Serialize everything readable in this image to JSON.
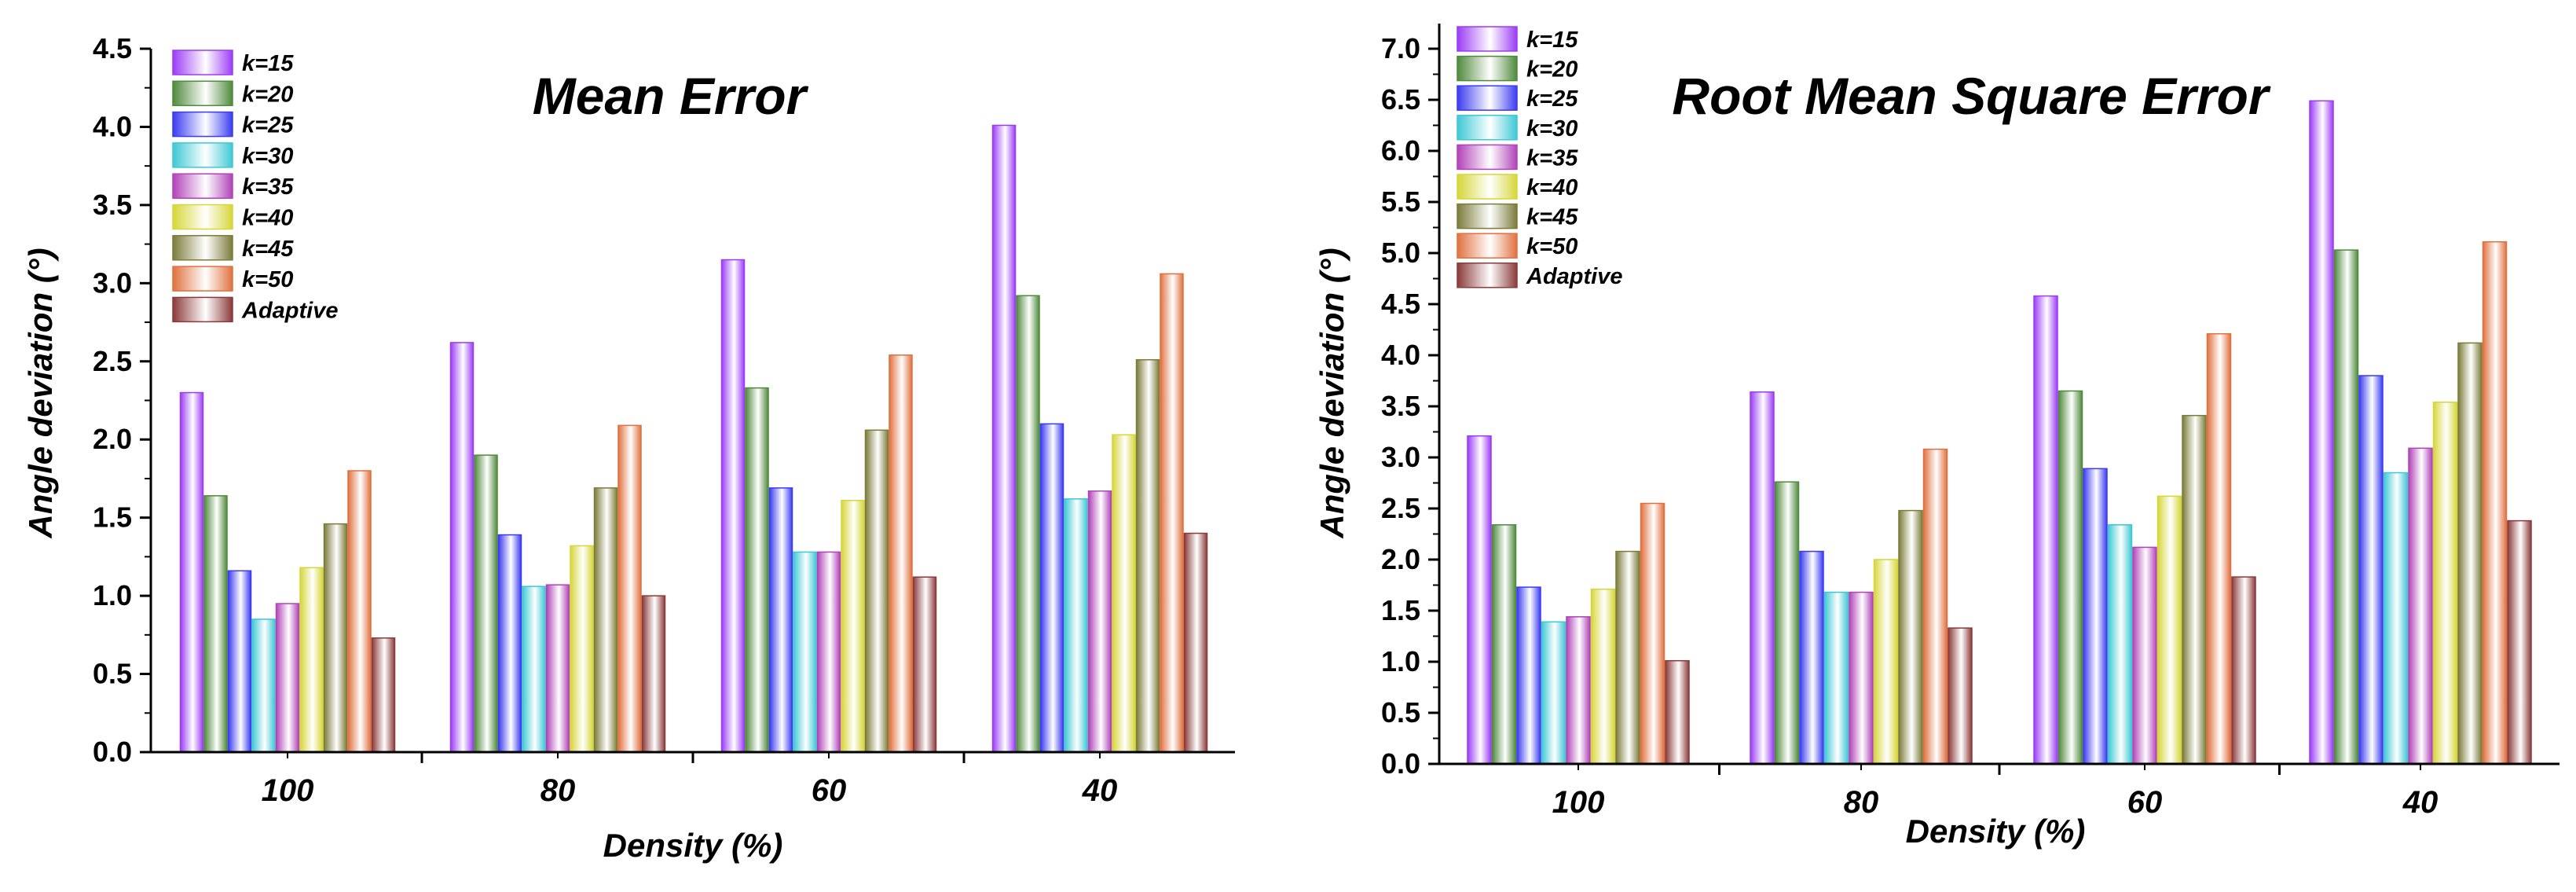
{
  "chart_data": [
    {
      "type": "bar",
      "title": "Mean Error",
      "xlabel": "Density (%)",
      "ylabel": "Angle deviation (°)",
      "categories": [
        "100",
        "80",
        "60",
        "40"
      ],
      "ylim": [
        0,
        4.5
      ],
      "yticks": [
        "0.0",
        "0.5",
        "1.0",
        "1.5",
        "2.0",
        "2.5",
        "3.0",
        "3.5",
        "4.0",
        "4.5"
      ],
      "legend_position": "top-left",
      "series": [
        {
          "name": "k=15",
          "color": "#9b3cf5",
          "values": [
            2.3,
            2.62,
            3.15,
            4.01
          ]
        },
        {
          "name": "k=20",
          "color": "#4f8a3c",
          "values": [
            1.64,
            1.9,
            2.33,
            2.92
          ]
        },
        {
          "name": "k=25",
          "color": "#3b3bf0",
          "values": [
            1.16,
            1.39,
            1.69,
            2.1
          ]
        },
        {
          "name": "k=30",
          "color": "#3ec8d4",
          "values": [
            0.85,
            1.06,
            1.28,
            1.62
          ]
        },
        {
          "name": "k=35",
          "color": "#b043b8",
          "values": [
            0.95,
            1.07,
            1.28,
            1.67
          ]
        },
        {
          "name": "k=40",
          "color": "#d6d63a",
          "values": [
            1.18,
            1.32,
            1.61,
            2.03
          ]
        },
        {
          "name": "k=45",
          "color": "#7b7b3a",
          "values": [
            1.46,
            1.69,
            2.06,
            2.51
          ]
        },
        {
          "name": "k=50",
          "color": "#e0713f",
          "values": [
            1.8,
            2.09,
            2.54,
            3.06
          ]
        },
        {
          "name": "Adaptive",
          "color": "#8b3a3a",
          "values": [
            0.73,
            1.0,
            1.12,
            1.4
          ]
        }
      ]
    },
    {
      "type": "bar",
      "title": "Root Mean Square Error",
      "xlabel": "Density (%)",
      "ylabel": "Angle deviation (°)",
      "categories": [
        "100",
        "80",
        "60",
        "40"
      ],
      "ylim": [
        0,
        7.0
      ],
      "yticks": [
        "0.0",
        "0.5",
        "1.0",
        "1.5",
        "2.0",
        "2.5",
        "3.0",
        "3.5",
        "4.0",
        "4.5",
        "5.0",
        "5.5",
        "6.0",
        "6.5",
        "7.0"
      ],
      "legend_position": "top-left",
      "series": [
        {
          "name": "k=15",
          "color": "#9b3cf5",
          "values": [
            3.21,
            3.64,
            4.58,
            6.49
          ]
        },
        {
          "name": "k=20",
          "color": "#4f8a3c",
          "values": [
            2.34,
            2.76,
            3.65,
            5.03
          ]
        },
        {
          "name": "k=25",
          "color": "#3b3bf0",
          "values": [
            1.73,
            2.08,
            2.89,
            3.8
          ]
        },
        {
          "name": "k=30",
          "color": "#3ec8d4",
          "values": [
            1.39,
            1.68,
            2.34,
            2.85
          ]
        },
        {
          "name": "k=35",
          "color": "#b043b8",
          "values": [
            1.44,
            1.68,
            2.12,
            3.09
          ]
        },
        {
          "name": "k=40",
          "color": "#d6d63a",
          "values": [
            1.71,
            2.0,
            2.62,
            3.54
          ]
        },
        {
          "name": "k=45",
          "color": "#7b7b3a",
          "values": [
            2.08,
            2.48,
            3.41,
            4.12
          ]
        },
        {
          "name": "k=50",
          "color": "#e0713f",
          "values": [
            2.55,
            3.08,
            4.21,
            5.11
          ]
        },
        {
          "name": "Adaptive",
          "color": "#8b3a3a",
          "values": [
            1.01,
            1.33,
            1.83,
            2.38
          ]
        }
      ]
    }
  ]
}
